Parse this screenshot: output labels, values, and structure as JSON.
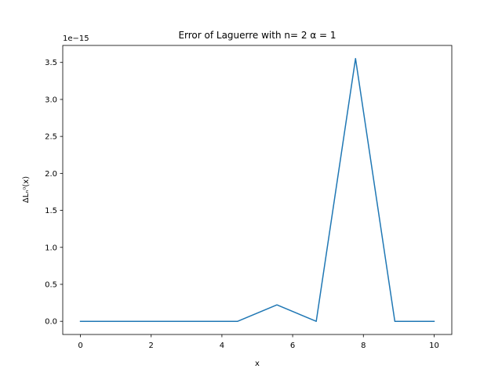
{
  "chart_data": {
    "type": "line",
    "title": "Error of Laguerre with n= 2 α = 1",
    "xlabel": "x",
    "ylabel": "ΔLₙᵅ(x)",
    "y_offset_text": "1e−15",
    "xlim": [
      -0.5,
      10.5
    ],
    "ylim": [
      -0.178,
      3.73
    ],
    "x_ticks": [
      0,
      2,
      4,
      6,
      8,
      10
    ],
    "x_tick_labels": [
      "0",
      "2",
      "4",
      "6",
      "8",
      "10"
    ],
    "y_ticks": [
      0.0,
      0.5,
      1.0,
      1.5,
      2.0,
      2.5,
      3.0,
      3.5
    ],
    "y_tick_labels": [
      "0.0",
      "0.5",
      "1.0",
      "1.5",
      "2.0",
      "2.5",
      "3.0",
      "3.5"
    ],
    "grid": false,
    "series": [
      {
        "color": "#1f77b4",
        "x": [
          0,
          1.111,
          2.222,
          3.333,
          4.444,
          5.556,
          6.667,
          7.778,
          8.889,
          10
        ],
        "y": [
          0,
          0,
          0,
          0,
          0,
          0.222,
          0,
          3.553,
          0,
          0
        ]
      }
    ]
  }
}
